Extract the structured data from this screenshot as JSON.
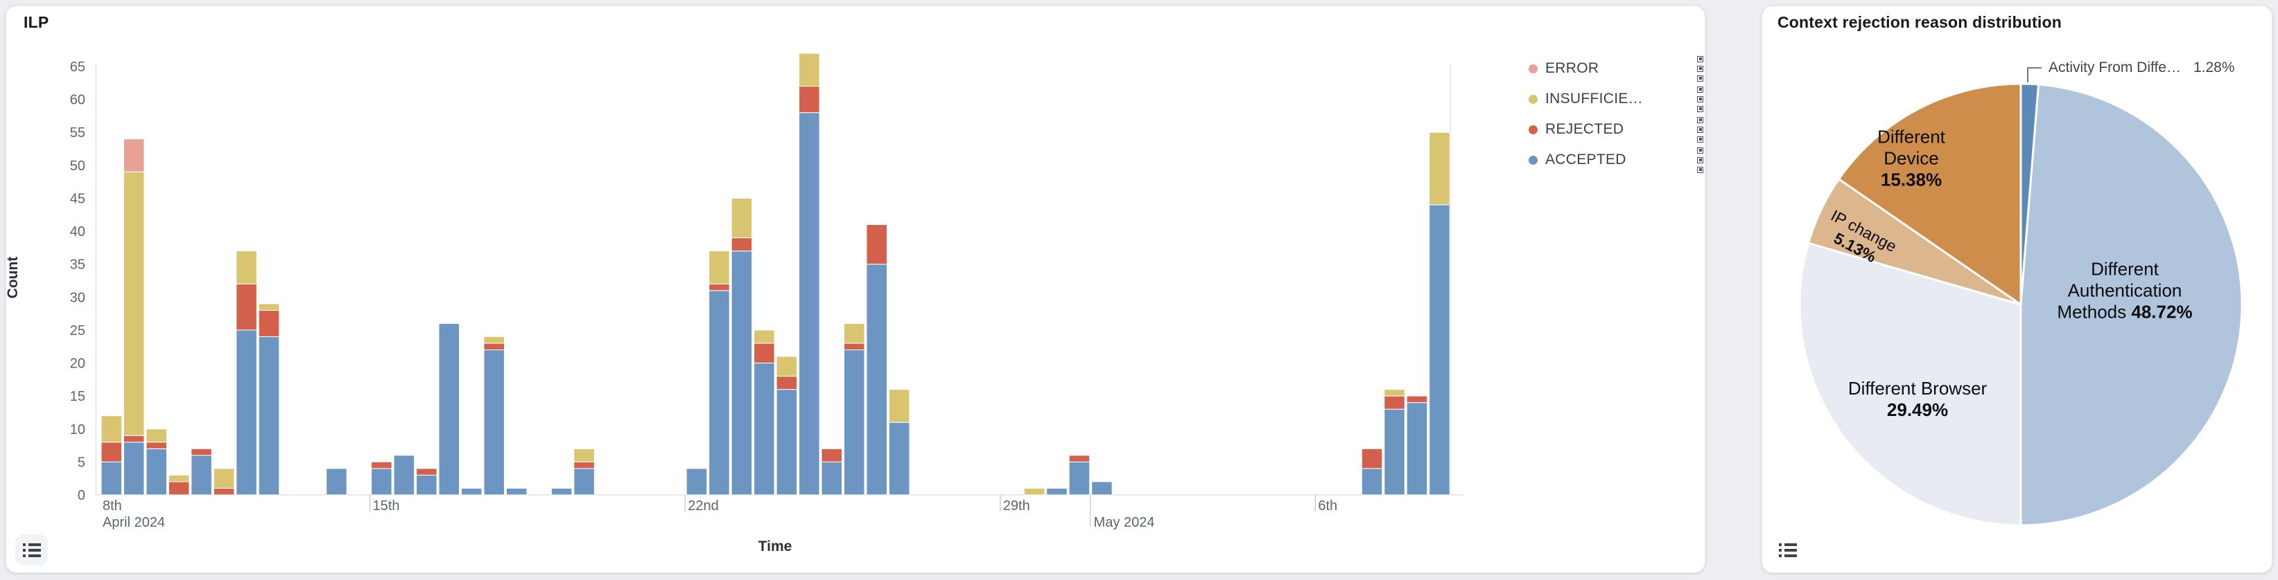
{
  "ilp": {
    "title": "ILP",
    "xlabel": "Time",
    "ylabel": "Count",
    "legend": [
      {
        "label": "ERROR",
        "color": "#e9a195"
      },
      {
        "label": "INSUFFICIE…",
        "color": "#d9c470"
      },
      {
        "label": "REJECTED",
        "color": "#d2604a"
      },
      {
        "label": "ACCEPTED",
        "color": "#6d95c2"
      }
    ]
  },
  "pie": {
    "title": "Context rejection reason distribution",
    "labels": {
      "auth": {
        "lines": [
          "Different",
          "Authentication",
          "Methods"
        ],
        "pct": "48.72%"
      },
      "browser": {
        "text": "Different Browser",
        "pct": "29.49%"
      },
      "device": {
        "lines": [
          "Different",
          "Device"
        ],
        "pct": "15.38%"
      },
      "ip": {
        "text": "IP change",
        "pct": "5.13%"
      },
      "activity": {
        "text": "Activity From Diffe…",
        "pct": "1.28%"
      }
    }
  },
  "chart_data": [
    {
      "type": "bar",
      "stacked": true,
      "title": "ILP",
      "xlabel": "Time",
      "ylabel": "Count",
      "ylim": [
        0,
        65
      ],
      "y_ticks": [
        0,
        5,
        10,
        15,
        20,
        25,
        30,
        35,
        40,
        45,
        50,
        55,
        60,
        65
      ],
      "grid": false,
      "legend_position": "right",
      "stack_order": [
        "ACCEPTED",
        "REJECTED",
        "INSUFFICIENT",
        "ERROR"
      ],
      "series_colors": {
        "ACCEPTED": "#6d95c2",
        "REJECTED": "#d2604a",
        "INSUFFICIENT": "#d9c470",
        "ERROR": "#e9a195"
      },
      "x_ticks": [
        {
          "slot": 0,
          "label": "8th",
          "sub": "April 2024",
          "tick": false
        },
        {
          "slot": 12,
          "label": "15th"
        },
        {
          "slot": 26,
          "label": "22nd"
        },
        {
          "slot": 40,
          "label": "29th"
        },
        {
          "slot": 44,
          "label": "May 2024",
          "major": true,
          "second_line": true
        },
        {
          "slot": 54,
          "label": "6th"
        }
      ],
      "bars_columns": [
        "slot",
        "ACCEPTED",
        "REJECTED",
        "INSUFFICIENT",
        "ERROR"
      ],
      "bars": [
        [
          0,
          5,
          3,
          4,
          0
        ],
        [
          1,
          8,
          1,
          40,
          5
        ],
        [
          2,
          7,
          1,
          2,
          0
        ],
        [
          3,
          0,
          2,
          1,
          0
        ],
        [
          4,
          6,
          1,
          0,
          0
        ],
        [
          5,
          0,
          1,
          3,
          0
        ],
        [
          6,
          25,
          7,
          5,
          0
        ],
        [
          7,
          24,
          4,
          1,
          0
        ],
        [
          10,
          4,
          0,
          0,
          0
        ],
        [
          12,
          4,
          1,
          0,
          0
        ],
        [
          13,
          6,
          0,
          0,
          0
        ],
        [
          14,
          3,
          1,
          0,
          0
        ],
        [
          15,
          26,
          0,
          0,
          0
        ],
        [
          16,
          1,
          0,
          0,
          0
        ],
        [
          17,
          22,
          1,
          1,
          0
        ],
        [
          18,
          1,
          0,
          0,
          0
        ],
        [
          20,
          1,
          0,
          0,
          0
        ],
        [
          21,
          4,
          1,
          2,
          0
        ],
        [
          26,
          4,
          0,
          0,
          0
        ],
        [
          27,
          31,
          1,
          5,
          0
        ],
        [
          28,
          37,
          2,
          6,
          0
        ],
        [
          29,
          20,
          3,
          2,
          0
        ],
        [
          30,
          16,
          2,
          3,
          0
        ],
        [
          31,
          58,
          4,
          5,
          0
        ],
        [
          32,
          5,
          2,
          0,
          0
        ],
        [
          33,
          22,
          1,
          3,
          0
        ],
        [
          34,
          35,
          6,
          0,
          0
        ],
        [
          35,
          11,
          0,
          5,
          0
        ],
        [
          41,
          0,
          0,
          1,
          0
        ],
        [
          42,
          1,
          0,
          0,
          0
        ],
        [
          43,
          5,
          1,
          0,
          0
        ],
        [
          44,
          2,
          0,
          0,
          0
        ],
        [
          56,
          4,
          3,
          0,
          0
        ],
        [
          57,
          13,
          2,
          1,
          0
        ],
        [
          58,
          14,
          1,
          0,
          0
        ],
        [
          59,
          44,
          0,
          11,
          0
        ]
      ]
    },
    {
      "type": "pie",
      "title": "Context rejection reason distribution",
      "start_angle_deg_from_top": 0,
      "direction": "clockwise",
      "slices": [
        {
          "label": "Activity From Diffe…",
          "value": 1.28,
          "pct": "1.28%",
          "color": "#5d89b8"
        },
        {
          "label": "Different Authentication Methods",
          "value": 48.72,
          "pct": "48.72%",
          "color": "#b0c5dc"
        },
        {
          "label": "Different Browser",
          "value": 29.49,
          "pct": "29.49%",
          "color": "#e8ebf1"
        },
        {
          "label": "IP change",
          "value": 5.13,
          "pct": "5.13%",
          "color": "#dcb78e"
        },
        {
          "label": "Different Device",
          "value": 15.38,
          "pct": "15.38%",
          "color": "#ce8d4a"
        }
      ]
    }
  ]
}
